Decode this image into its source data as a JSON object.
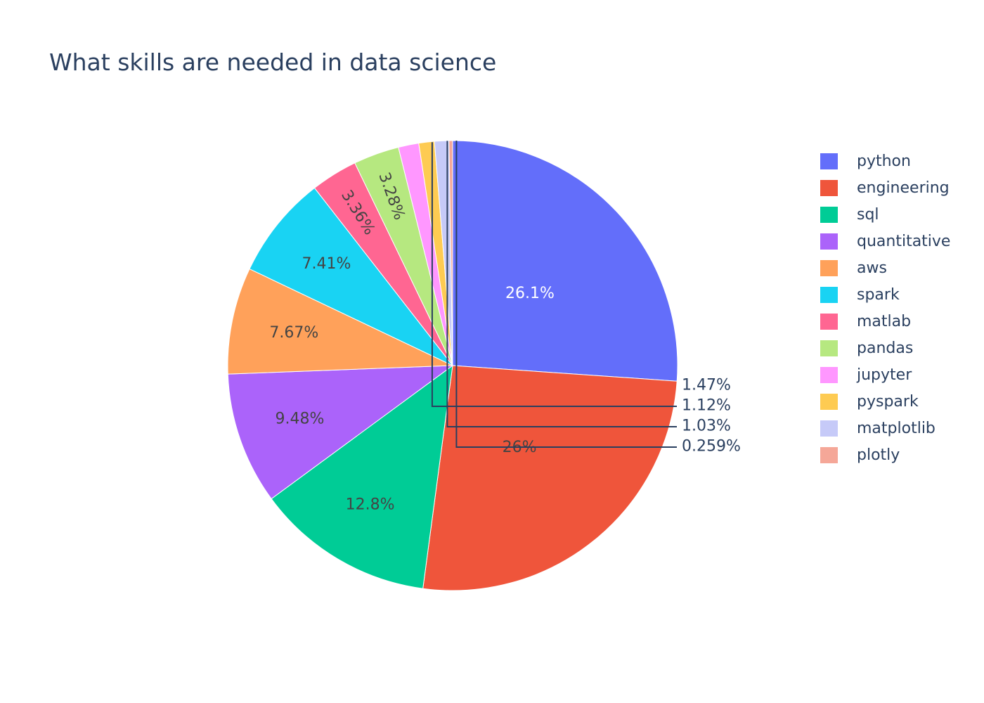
{
  "chart_data": {
    "type": "pie",
    "title": "What skills are needed in data science",
    "categories": [
      "python",
      "engineering",
      "sql",
      "quantitative",
      "aws",
      "spark",
      "matlab",
      "pandas",
      "jupyter",
      "pyspark",
      "matplotlib",
      "plotly"
    ],
    "values": [
      26.1,
      26.0,
      12.8,
      9.48,
      7.67,
      7.41,
      3.36,
      3.28,
      1.47,
      1.12,
      1.03,
      0.259
    ],
    "labels": [
      "26.1%",
      "26%",
      "12.8%",
      "9.48%",
      "7.67%",
      "7.41%",
      "3.36%",
      "3.28%",
      "1.47%",
      "1.12%",
      "1.03%",
      "0.259%"
    ],
    "colors": [
      "#636efa",
      "#ef553b",
      "#00cc96",
      "#ab63fa",
      "#ffa15a",
      "#19d3f3",
      "#ff6692",
      "#b6e880",
      "#ff97ff",
      "#fecb52",
      "#c6caf8",
      "#f5a798"
    ],
    "direction": "clockwise",
    "start": "top",
    "legend_position": "right",
    "text_info": "percent"
  }
}
